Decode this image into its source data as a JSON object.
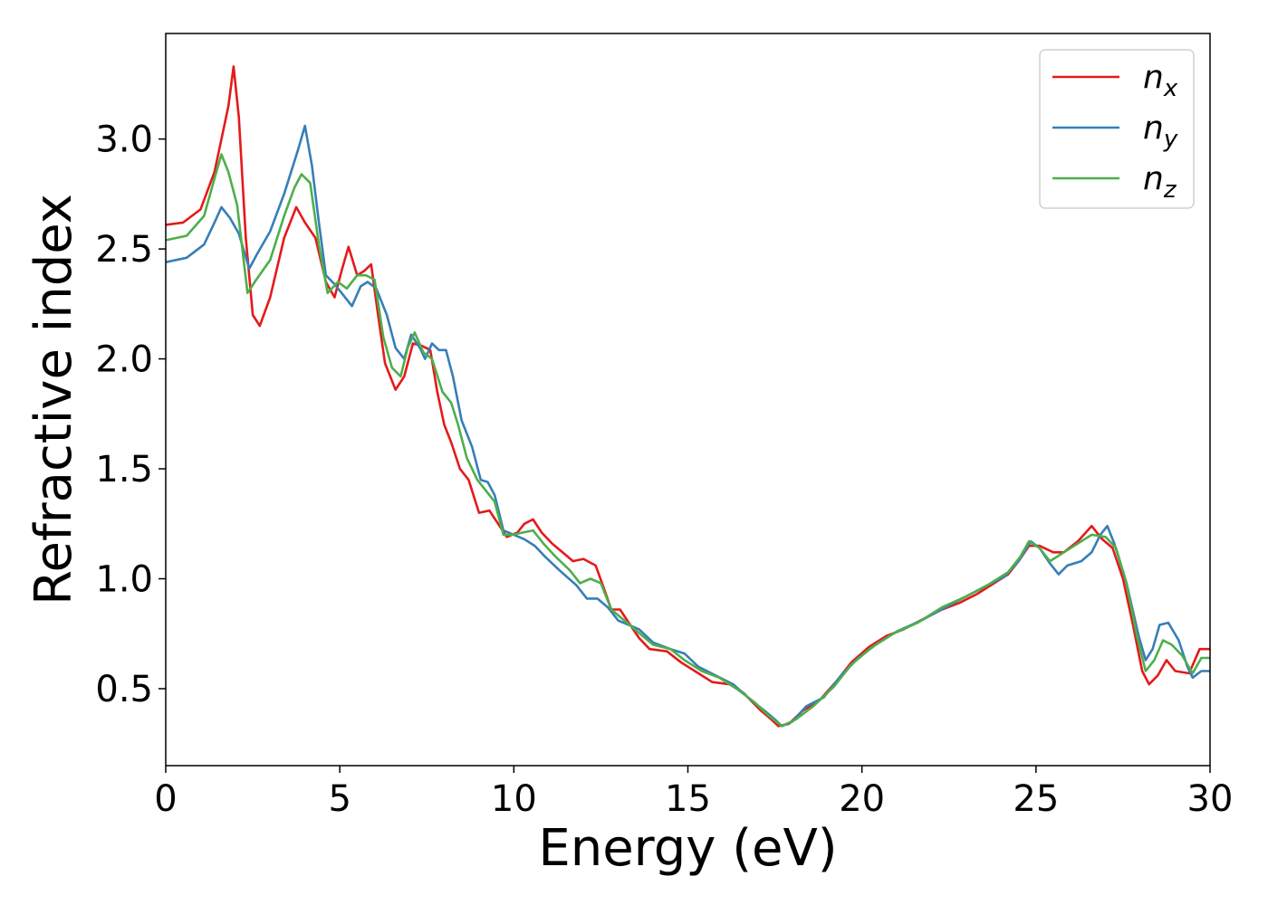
{
  "chart_data": {
    "type": "line",
    "xlabel": "Energy (eV)",
    "ylabel": "Refractive index",
    "xlim": [
      0,
      30
    ],
    "ylim": [
      0.15,
      3.48
    ],
    "xticks": [
      "0",
      "5",
      "10",
      "15",
      "20",
      "25",
      "30"
    ],
    "yticks": [
      "0.5",
      "1.0",
      "1.5",
      "2.0",
      "2.5",
      "3.0"
    ],
    "grid": false,
    "legend_position": "top-right",
    "series": [
      {
        "name": "n",
        "subscript": "x",
        "color": "#e41a1c",
        "points": [
          [
            0,
            2.61
          ],
          [
            0.5,
            2.62
          ],
          [
            1,
            2.68
          ],
          [
            1.4,
            2.85
          ],
          [
            1.8,
            3.15
          ],
          [
            1.95,
            3.33
          ],
          [
            2.1,
            3.1
          ],
          [
            2.3,
            2.55
          ],
          [
            2.5,
            2.2
          ],
          [
            2.7,
            2.15
          ],
          [
            3,
            2.28
          ],
          [
            3.4,
            2.55
          ],
          [
            3.75,
            2.69
          ],
          [
            4,
            2.62
          ],
          [
            4.3,
            2.55
          ],
          [
            4.6,
            2.35
          ],
          [
            4.85,
            2.28
          ],
          [
            5.05,
            2.4
          ],
          [
            5.25,
            2.51
          ],
          [
            5.5,
            2.38
          ],
          [
            5.7,
            2.4
          ],
          [
            5.9,
            2.43
          ],
          [
            6.1,
            2.2
          ],
          [
            6.3,
            1.98
          ],
          [
            6.6,
            1.86
          ],
          [
            6.85,
            1.92
          ],
          [
            7.1,
            2.07
          ],
          [
            7.35,
            2.06
          ],
          [
            7.6,
            2.04
          ],
          [
            7.8,
            1.85
          ],
          [
            8,
            1.7
          ],
          [
            8.2,
            1.62
          ],
          [
            8.45,
            1.5
          ],
          [
            8.7,
            1.45
          ],
          [
            9,
            1.3
          ],
          [
            9.3,
            1.31
          ],
          [
            9.55,
            1.25
          ],
          [
            9.8,
            1.19
          ],
          [
            10.1,
            1.21
          ],
          [
            10.3,
            1.25
          ],
          [
            10.55,
            1.27
          ],
          [
            10.8,
            1.21
          ],
          [
            11.1,
            1.16
          ],
          [
            11.4,
            1.12
          ],
          [
            11.7,
            1.08
          ],
          [
            12,
            1.09
          ],
          [
            12.35,
            1.06
          ],
          [
            12.6,
            0.95
          ],
          [
            12.8,
            0.86
          ],
          [
            13.05,
            0.86
          ],
          [
            13.3,
            0.8
          ],
          [
            13.6,
            0.73
          ],
          [
            13.9,
            0.68
          ],
          [
            14.4,
            0.67
          ],
          [
            14.8,
            0.62
          ],
          [
            15.2,
            0.58
          ],
          [
            15.7,
            0.53
          ],
          [
            16.2,
            0.52
          ],
          [
            16.6,
            0.48
          ],
          [
            17.1,
            0.4
          ],
          [
            17.4,
            0.36
          ],
          [
            17.6,
            0.33
          ],
          [
            17.9,
            0.34
          ],
          [
            18.3,
            0.4
          ],
          [
            18.8,
            0.45
          ],
          [
            19.3,
            0.54
          ],
          [
            19.7,
            0.62
          ],
          [
            20.2,
            0.69
          ],
          [
            20.7,
            0.74
          ],
          [
            21.2,
            0.77
          ],
          [
            21.8,
            0.82
          ],
          [
            22.3,
            0.86
          ],
          [
            22.8,
            0.89
          ],
          [
            23.3,
            0.93
          ],
          [
            23.8,
            0.98
          ],
          [
            24.2,
            1.02
          ],
          [
            24.5,
            1.08
          ],
          [
            24.8,
            1.15
          ],
          [
            25.1,
            1.15
          ],
          [
            25.5,
            1.12
          ],
          [
            25.8,
            1.12
          ],
          [
            26.2,
            1.17
          ],
          [
            26.6,
            1.24
          ],
          [
            26.9,
            1.18
          ],
          [
            27.2,
            1.14
          ],
          [
            27.5,
            1.0
          ],
          [
            27.8,
            0.78
          ],
          [
            28.05,
            0.58
          ],
          [
            28.25,
            0.52
          ],
          [
            28.5,
            0.56
          ],
          [
            28.75,
            0.63
          ],
          [
            29,
            0.58
          ],
          [
            29.4,
            0.57
          ],
          [
            29.7,
            0.68
          ],
          [
            30,
            0.68
          ]
        ]
      },
      {
        "name": "n",
        "subscript": "y",
        "color": "#377eb8",
        "points": [
          [
            0,
            2.44
          ],
          [
            0.6,
            2.46
          ],
          [
            1.1,
            2.52
          ],
          [
            1.4,
            2.62
          ],
          [
            1.6,
            2.69
          ],
          [
            1.85,
            2.64
          ],
          [
            2.1,
            2.57
          ],
          [
            2.4,
            2.41
          ],
          [
            2.6,
            2.47
          ],
          [
            3,
            2.58
          ],
          [
            3.4,
            2.75
          ],
          [
            3.8,
            2.95
          ],
          [
            4.0,
            3.06
          ],
          [
            4.2,
            2.88
          ],
          [
            4.4,
            2.62
          ],
          [
            4.6,
            2.38
          ],
          [
            4.85,
            2.34
          ],
          [
            5.1,
            2.29
          ],
          [
            5.35,
            2.24
          ],
          [
            5.6,
            2.33
          ],
          [
            5.8,
            2.35
          ],
          [
            6.05,
            2.32
          ],
          [
            6.35,
            2.2
          ],
          [
            6.6,
            2.05
          ],
          [
            6.85,
            2.0
          ],
          [
            7.05,
            2.11
          ],
          [
            7.3,
            2.05
          ],
          [
            7.45,
            2.0
          ],
          [
            7.65,
            2.07
          ],
          [
            7.85,
            2.04
          ],
          [
            8.05,
            2.04
          ],
          [
            8.25,
            1.92
          ],
          [
            8.5,
            1.72
          ],
          [
            8.8,
            1.6
          ],
          [
            9.05,
            1.45
          ],
          [
            9.25,
            1.44
          ],
          [
            9.45,
            1.38
          ],
          [
            9.7,
            1.22
          ],
          [
            10.0,
            1.2
          ],
          [
            10.3,
            1.18
          ],
          [
            10.6,
            1.15
          ],
          [
            10.9,
            1.1
          ],
          [
            11.3,
            1.04
          ],
          [
            11.8,
            0.97
          ],
          [
            12.1,
            0.91
          ],
          [
            12.4,
            0.91
          ],
          [
            12.7,
            0.87
          ],
          [
            13.0,
            0.81
          ],
          [
            13.3,
            0.79
          ],
          [
            13.6,
            0.77
          ],
          [
            14.0,
            0.71
          ],
          [
            14.5,
            0.68
          ],
          [
            14.9,
            0.66
          ],
          [
            15.3,
            0.6
          ],
          [
            15.8,
            0.56
          ],
          [
            16.3,
            0.52
          ],
          [
            16.8,
            0.45
          ],
          [
            17.2,
            0.4
          ],
          [
            17.5,
            0.36
          ],
          [
            17.7,
            0.33
          ],
          [
            18.0,
            0.35
          ],
          [
            18.4,
            0.42
          ],
          [
            18.9,
            0.46
          ],
          [
            19.4,
            0.56
          ],
          [
            19.9,
            0.64
          ],
          [
            20.4,
            0.7
          ],
          [
            21,
            0.76
          ],
          [
            21.7,
            0.81
          ],
          [
            22.4,
            0.87
          ],
          [
            23,
            0.92
          ],
          [
            23.6,
            0.97
          ],
          [
            24.1,
            1.01
          ],
          [
            24.5,
            1.08
          ],
          [
            24.85,
            1.17
          ],
          [
            25.1,
            1.14
          ],
          [
            25.4,
            1.07
          ],
          [
            25.65,
            1.02
          ],
          [
            25.9,
            1.06
          ],
          [
            26.3,
            1.08
          ],
          [
            26.6,
            1.12
          ],
          [
            26.85,
            1.2
          ],
          [
            27.05,
            1.24
          ],
          [
            27.25,
            1.16
          ],
          [
            27.6,
            0.98
          ],
          [
            27.95,
            0.74
          ],
          [
            28.15,
            0.63
          ],
          [
            28.35,
            0.68
          ],
          [
            28.55,
            0.79
          ],
          [
            28.8,
            0.8
          ],
          [
            29.1,
            0.72
          ],
          [
            29.35,
            0.6
          ],
          [
            29.5,
            0.55
          ],
          [
            29.75,
            0.58
          ],
          [
            30,
            0.58
          ]
        ]
      },
      {
        "name": "n",
        "subscript": "z",
        "color": "#4daf4a",
        "points": [
          [
            0,
            2.54
          ],
          [
            0.6,
            2.56
          ],
          [
            1.1,
            2.65
          ],
          [
            1.4,
            2.82
          ],
          [
            1.6,
            2.93
          ],
          [
            1.8,
            2.85
          ],
          [
            2.05,
            2.7
          ],
          [
            2.35,
            2.3
          ],
          [
            2.6,
            2.36
          ],
          [
            3,
            2.45
          ],
          [
            3.4,
            2.65
          ],
          [
            3.7,
            2.78
          ],
          [
            3.9,
            2.84
          ],
          [
            4.15,
            2.8
          ],
          [
            4.4,
            2.52
          ],
          [
            4.65,
            2.3
          ],
          [
            4.95,
            2.35
          ],
          [
            5.2,
            2.32
          ],
          [
            5.5,
            2.38
          ],
          [
            5.75,
            2.38
          ],
          [
            6.0,
            2.36
          ],
          [
            6.25,
            2.1
          ],
          [
            6.5,
            1.96
          ],
          [
            6.75,
            1.92
          ],
          [
            6.95,
            2.05
          ],
          [
            7.15,
            2.12
          ],
          [
            7.4,
            2.03
          ],
          [
            7.65,
            2.0
          ],
          [
            7.95,
            1.85
          ],
          [
            8.2,
            1.8
          ],
          [
            8.4,
            1.7
          ],
          [
            8.65,
            1.55
          ],
          [
            8.95,
            1.45
          ],
          [
            9.2,
            1.4
          ],
          [
            9.45,
            1.35
          ],
          [
            9.7,
            1.2
          ],
          [
            9.95,
            1.2
          ],
          [
            10.25,
            1.21
          ],
          [
            10.55,
            1.22
          ],
          [
            10.85,
            1.16
          ],
          [
            11.2,
            1.1
          ],
          [
            11.6,
            1.04
          ],
          [
            11.9,
            0.98
          ],
          [
            12.2,
            1.0
          ],
          [
            12.5,
            0.98
          ],
          [
            12.8,
            0.86
          ],
          [
            13.1,
            0.82
          ],
          [
            13.4,
            0.78
          ],
          [
            13.7,
            0.74
          ],
          [
            14,
            0.7
          ],
          [
            14.5,
            0.68
          ],
          [
            14.9,
            0.63
          ],
          [
            15.4,
            0.58
          ],
          [
            15.9,
            0.55
          ],
          [
            16.4,
            0.5
          ],
          [
            16.9,
            0.44
          ],
          [
            17.3,
            0.38
          ],
          [
            17.7,
            0.33
          ],
          [
            18.1,
            0.36
          ],
          [
            18.6,
            0.42
          ],
          [
            19.2,
            0.51
          ],
          [
            19.7,
            0.61
          ],
          [
            20.3,
            0.69
          ],
          [
            20.9,
            0.75
          ],
          [
            21.6,
            0.8
          ],
          [
            22.3,
            0.87
          ],
          [
            23,
            0.92
          ],
          [
            23.6,
            0.97
          ],
          [
            24.2,
            1.03
          ],
          [
            24.55,
            1.1
          ],
          [
            24.8,
            1.17
          ],
          [
            25.1,
            1.14
          ],
          [
            25.4,
            1.08
          ],
          [
            25.8,
            1.12
          ],
          [
            26.3,
            1.17
          ],
          [
            26.6,
            1.2
          ],
          [
            27.0,
            1.19
          ],
          [
            27.3,
            1.14
          ],
          [
            27.6,
            0.98
          ],
          [
            27.9,
            0.74
          ],
          [
            28.15,
            0.58
          ],
          [
            28.4,
            0.63
          ],
          [
            28.65,
            0.72
          ],
          [
            28.9,
            0.7
          ],
          [
            29.2,
            0.65
          ],
          [
            29.5,
            0.57
          ],
          [
            29.75,
            0.64
          ],
          [
            30,
            0.64
          ]
        ]
      }
    ]
  }
}
